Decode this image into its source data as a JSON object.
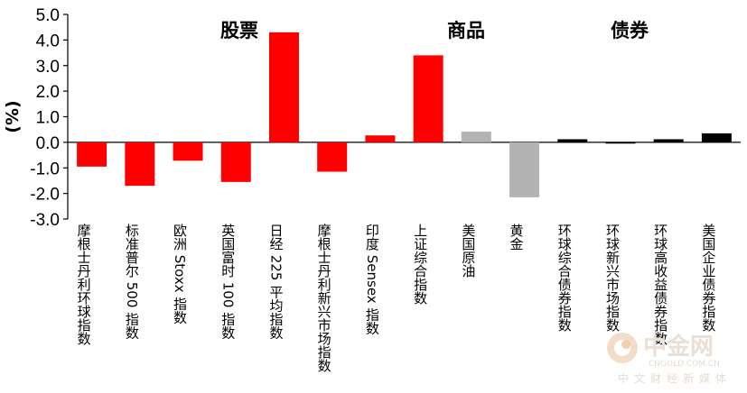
{
  "chart_data": {
    "type": "bar",
    "ylabel": "(%)",
    "ylim": [
      -3.0,
      5.0
    ],
    "yticks": [
      "5.0",
      "4.0",
      "3.0",
      "2.0",
      "1.0",
      "0.0",
      "-1.0",
      "-2.0",
      "-3.0"
    ],
    "grid": false,
    "sections": [
      "股票",
      "商品",
      "债券"
    ],
    "categories": [
      "摩根士丹利环球指数",
      "标准普尔 500 指数",
      "欧洲 Stoxx 指数",
      "英国富时 100 指数",
      "日经 225 平均指数",
      "摩根士丹利新兴市场指数",
      "印度 Sensex 指数",
      "上证综合指数",
      "美国原油",
      "黄金",
      "环球综合债券指数",
      "环球新兴市场指数",
      "环球高收益债券指数",
      "美国企业债券指数"
    ],
    "values": [
      -0.95,
      -1.7,
      -0.72,
      -1.55,
      4.3,
      -1.15,
      0.27,
      3.4,
      0.42,
      -2.15,
      0.12,
      -0.05,
      0.12,
      0.35
    ],
    "colors": [
      "#ff0000",
      "#ff0000",
      "#ff0000",
      "#ff0000",
      "#ff0000",
      "#ff0000",
      "#ff0000",
      "#ff0000",
      "#b3b3b3",
      "#b3b3b3",
      "#000000",
      "#000000",
      "#000000",
      "#000000"
    ]
  },
  "watermark": {
    "name": "中金网",
    "url": "CNGOLD.COM.CN",
    "tagline": "中文财经新媒体"
  }
}
